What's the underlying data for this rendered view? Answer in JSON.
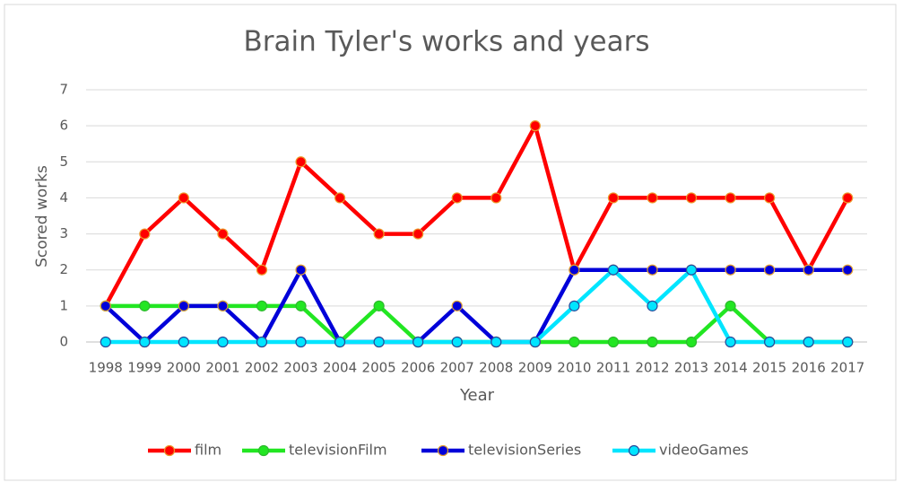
{
  "chart_data": {
    "type": "line",
    "title": "Brain Tyler's works and years",
    "x_label": "Year",
    "y_label": "Scored works",
    "categories": [
      "1998",
      "1999",
      "2000",
      "2001",
      "2002",
      "2003",
      "2004",
      "2005",
      "2006",
      "2007",
      "2008",
      "2009",
      "2010",
      "2011",
      "2012",
      "2013",
      "2014",
      "2015",
      "2016",
      "2017"
    ],
    "series": [
      {
        "name": "film",
        "color": "#ff0000",
        "marker_edge_color": "#ed9a2c",
        "values": [
          1,
          3,
          4,
          3,
          2,
          5,
          4,
          3,
          3,
          4,
          4,
          6,
          2,
          4,
          4,
          4,
          4,
          4,
          2,
          4
        ]
      },
      {
        "name": "televisionFilm",
        "color": "#22e622",
        "marker_edge_color": "#2eb82e",
        "values": [
          1,
          1,
          1,
          1,
          1,
          1,
          0,
          1,
          0,
          0,
          0,
          0,
          0,
          0,
          0,
          0,
          1,
          0,
          0,
          0
        ]
      },
      {
        "name": "televisionSeries",
        "color": "#0000d9",
        "marker_edge_color": "#e0a030",
        "values": [
          1,
          0,
          1,
          1,
          0,
          2,
          0,
          0,
          0,
          1,
          0,
          0,
          2,
          2,
          2,
          2,
          2,
          2,
          2,
          2
        ]
      },
      {
        "name": "videoGames",
        "color": "#00e5ff",
        "marker_edge_color": "#2a4a9a",
        "values": [
          0,
          0,
          0,
          0,
          0,
          0,
          0,
          0,
          0,
          0,
          0,
          0,
          1,
          2,
          1,
          2,
          0,
          0,
          0,
          0
        ]
      }
    ],
    "ylim": [
      0,
      7
    ],
    "yticks": [
      0,
      1,
      2,
      3,
      4,
      5,
      6,
      7
    ],
    "grid": true,
    "legend": "bottom"
  }
}
